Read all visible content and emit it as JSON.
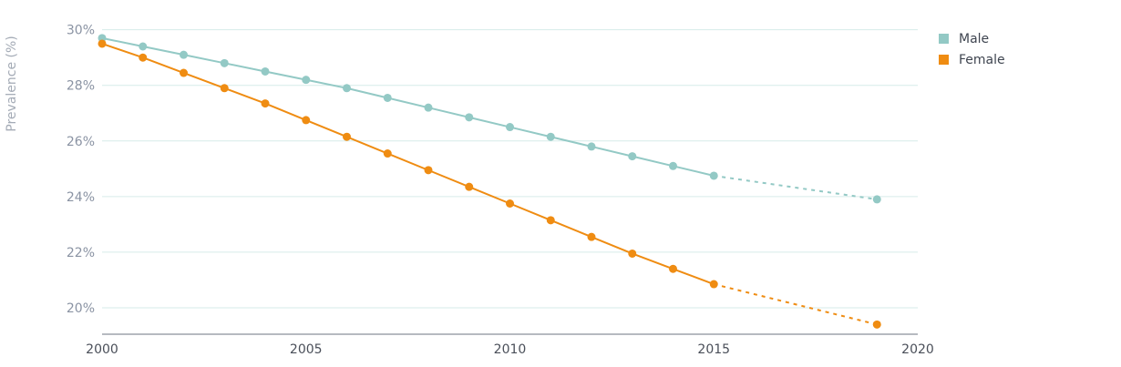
{
  "chart_data": {
    "type": "line",
    "ylabel": "Prevalence (%)",
    "xlabel": "",
    "x_ticks": [
      "2000",
      "2005",
      "2010",
      "2015",
      "2020"
    ],
    "y_ticks": [
      {
        "value": 20,
        "label": "20%"
      },
      {
        "value": 22,
        "label": "22%"
      },
      {
        "value": 24,
        "label": "24%"
      },
      {
        "value": 26,
        "label": "26%"
      },
      {
        "value": 28,
        "label": "28%"
      },
      {
        "value": 30,
        "label": "30%"
      }
    ],
    "xlim": [
      2000,
      2020
    ],
    "ylim": [
      19.05,
      30.35
    ],
    "grid": true,
    "legend_position": "top-right",
    "series": [
      {
        "name": "Male",
        "color": "#93c9c5",
        "points": [
          {
            "x": 2000,
            "y": 29.7
          },
          {
            "x": 2001,
            "y": 29.4
          },
          {
            "x": 2002,
            "y": 29.1
          },
          {
            "x": 2003,
            "y": 28.8
          },
          {
            "x": 2004,
            "y": 28.5
          },
          {
            "x": 2005,
            "y": 28.2
          },
          {
            "x": 2006,
            "y": 27.9
          },
          {
            "x": 2007,
            "y": 27.55
          },
          {
            "x": 2008,
            "y": 27.2
          },
          {
            "x": 2009,
            "y": 26.85
          },
          {
            "x": 2010,
            "y": 26.5
          },
          {
            "x": 2011,
            "y": 26.15
          },
          {
            "x": 2012,
            "y": 25.8
          },
          {
            "x": 2013,
            "y": 25.45
          },
          {
            "x": 2014,
            "y": 25.1
          },
          {
            "x": 2015,
            "y": 24.75
          }
        ],
        "projection": [
          {
            "x": 2015,
            "y": 24.75
          },
          {
            "x": 2019,
            "y": 23.9
          }
        ]
      },
      {
        "name": "Female",
        "color": "#ef8c12",
        "points": [
          {
            "x": 2000,
            "y": 29.5
          },
          {
            "x": 2001,
            "y": 29.0
          },
          {
            "x": 2002,
            "y": 28.45
          },
          {
            "x": 2003,
            "y": 27.9
          },
          {
            "x": 2004,
            "y": 27.35
          },
          {
            "x": 2005,
            "y": 26.75
          },
          {
            "x": 2006,
            "y": 26.15
          },
          {
            "x": 2007,
            "y": 25.55
          },
          {
            "x": 2008,
            "y": 24.95
          },
          {
            "x": 2009,
            "y": 24.35
          },
          {
            "x": 2010,
            "y": 23.75
          },
          {
            "x": 2011,
            "y": 23.15
          },
          {
            "x": 2012,
            "y": 22.55
          },
          {
            "x": 2013,
            "y": 21.95
          },
          {
            "x": 2014,
            "y": 21.4
          },
          {
            "x": 2015,
            "y": 20.85
          }
        ],
        "projection": [
          {
            "x": 2015,
            "y": 20.85
          },
          {
            "x": 2019,
            "y": 19.4
          }
        ]
      }
    ]
  }
}
